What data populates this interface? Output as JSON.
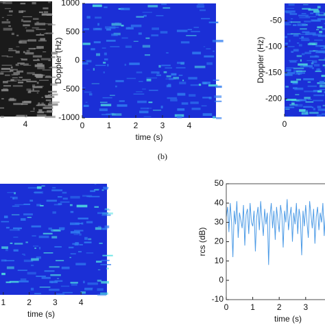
{
  "chart_data": [
    {
      "type": "heatmap",
      "colormap": "gray",
      "xlim": [
        0,
        5
      ],
      "xticks": [
        4
      ]
    },
    {
      "type": "heatmap",
      "colormap": "jet",
      "xlim": [
        0,
        5
      ],
      "ylim": [
        -1000,
        1000
      ],
      "xticks": [
        0,
        1,
        2,
        3,
        4
      ],
      "yticks": [
        -1000,
        -500,
        0,
        500,
        1000
      ],
      "xlabel": "time (s)",
      "ylabel": "Doppler (Hz)",
      "caption": "(b)"
    },
    {
      "type": "heatmap",
      "colormap": "jet",
      "xlim": [
        0,
        5
      ],
      "ylim": [
        -234,
        -17
      ],
      "xticks": [
        0
      ],
      "yticks": [
        -200,
        -150,
        -100,
        -50
      ],
      "ylabel": "Doppler (Hz)"
    },
    {
      "type": "heatmap",
      "colormap": "jet",
      "xlim": [
        0,
        5
      ],
      "xticks": [
        1,
        2,
        3,
        4
      ],
      "xlabel": "time (s)"
    },
    {
      "type": "line",
      "xlim": [
        0,
        5
      ],
      "ylim": [
        -10,
        50
      ],
      "xticks": [
        0,
        1,
        2,
        3
      ],
      "yticks": [
        -10,
        0,
        10,
        20,
        30,
        40,
        50
      ],
      "xlabel": "time (s)",
      "ylabel": "rcs (dB)",
      "color": "#4d9be6",
      "x": [
        0,
        0.05,
        0.1,
        0.15,
        0.2,
        0.25,
        0.3,
        0.35,
        0.4,
        0.45,
        0.5,
        0.55,
        0.6,
        0.65,
        0.7,
        0.75,
        0.8,
        0.85,
        0.9,
        0.95,
        1,
        1.05,
        1.1,
        1.15,
        1.2,
        1.25,
        1.3,
        1.35,
        1.4,
        1.45,
        1.5,
        1.55,
        1.6,
        1.65,
        1.7,
        1.75,
        1.8,
        1.85,
        1.9,
        1.95,
        2,
        2.05,
        2.1,
        2.15,
        2.2,
        2.25,
        2.3,
        2.35,
        2.4,
        2.45,
        2.5,
        2.55,
        2.6,
        2.65,
        2.7,
        2.75,
        2.8,
        2.85,
        2.9,
        2.95,
        3,
        3.05,
        3.1,
        3.15,
        3.2,
        3.25,
        3.3,
        3.35,
        3.4,
        3.45,
        3.5,
        3.55,
        3.6,
        3.65,
        3.7,
        3.75
      ],
      "values": [
        33,
        38,
        25,
        40,
        30,
        12,
        36,
        29,
        41,
        22,
        35,
        31,
        27,
        39,
        18,
        34,
        37,
        24,
        40,
        30,
        28,
        36,
        15,
        33,
        38,
        26,
        41,
        31,
        23,
        37,
        29,
        35,
        8,
        33,
        40,
        27,
        36,
        21,
        38,
        31,
        25,
        39,
        34,
        17,
        36,
        30,
        42,
        26,
        33,
        38,
        20,
        35,
        29,
        40,
        24,
        37,
        32,
        13,
        36,
        28,
        39,
        30,
        22,
        41,
        34,
        27,
        37,
        19,
        33,
        38,
        26,
        35,
        30,
        40,
        23,
        36
      ]
    }
  ]
}
